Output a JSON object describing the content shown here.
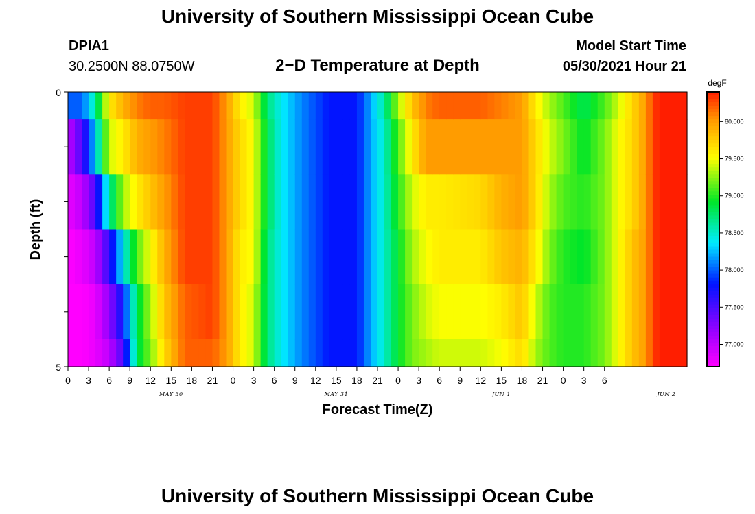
{
  "header": {
    "title": "University of Southern Mississippi Ocean Cube",
    "station_id": "DPIA1",
    "station_coords": "30.2500N  88.0750W",
    "chart_title": "2−D Temperature at Depth",
    "model_start_label": "Model Start Time",
    "model_start_value": "05/30/2021 Hour 21"
  },
  "footer": {
    "title": "University of Southern Mississippi Ocean Cube"
  },
  "chart_data": {
    "type": "heatmap",
    "title": "2−D Temperature at Depth",
    "xlabel": "Forecast Time(Z)",
    "ylabel": "Depth (ft)",
    "y_ticks": [
      "0",
      "5"
    ],
    "ylim": [
      0,
      5
    ],
    "x_tick_labels": [
      "0",
      "3",
      "6",
      "9",
      "12",
      "15",
      "18",
      "21",
      "0",
      "3",
      "6",
      "9",
      "12",
      "15",
      "18",
      "21",
      "0",
      "3",
      "6",
      "9",
      "12",
      "15",
      "18",
      "21",
      "0",
      "3",
      "6"
    ],
    "date_labels": [
      "MAY 30",
      "MAY 31",
      "JUN 1",
      "JUN 2"
    ],
    "colorbar": {
      "unit": "degF",
      "range": [
        76.7,
        80.4
      ],
      "tick_labels": [
        "77.000",
        "77.500",
        "78.000",
        "78.500",
        "79.000",
        "79.500",
        "80.000"
      ],
      "tick_values": [
        77.0,
        77.5,
        78.0,
        78.5,
        79.0,
        79.5,
        80.0
      ]
    },
    "time_step_hours": 1,
    "depth_levels_ft": [
      "0-0.5",
      "0.5-1.5",
      "1.5-2.5",
      "2.5-3.5",
      "3.5-4.5",
      "4.5-5"
    ],
    "temperature_keyframes_degF": [
      {
        "hour": 0,
        "levels": [
          78.0,
          77.0,
          76.8,
          76.7,
          76.7,
          76.7
        ]
      },
      {
        "hour": 2,
        "levels": [
          78.0,
          77.5,
          77.0,
          76.8,
          76.7,
          76.7
        ]
      },
      {
        "hour": 4,
        "levels": [
          78.6,
          78.3,
          77.5,
          77.0,
          76.8,
          76.8
        ]
      },
      {
        "hour": 6,
        "levels": [
          79.6,
          79.4,
          78.6,
          77.6,
          77.2,
          77.0
        ]
      },
      {
        "hour": 8,
        "levels": [
          79.9,
          79.6,
          79.3,
          78.4,
          77.8,
          77.5
        ]
      },
      {
        "hour": 10,
        "levels": [
          80.1,
          79.9,
          79.6,
          79.1,
          78.8,
          78.8
        ]
      },
      {
        "hour": 12,
        "levels": [
          80.2,
          80.0,
          79.8,
          79.5,
          79.3,
          79.2
        ]
      },
      {
        "hour": 14,
        "levels": [
          80.2,
          80.1,
          80.0,
          79.9,
          79.8,
          79.7
        ]
      },
      {
        "hour": 17,
        "levels": [
          80.3,
          80.3,
          80.3,
          80.3,
          80.2,
          80.2
        ]
      },
      {
        "hour": 21,
        "levels": [
          80.3,
          80.3,
          80.3,
          80.3,
          80.3,
          80.2
        ]
      },
      {
        "hour": 23,
        "levels": [
          80.0,
          80.0,
          80.0,
          80.0,
          80.0,
          80.0
        ]
      },
      {
        "hour": 25,
        "levels": [
          79.6,
          79.7,
          79.7,
          79.6,
          79.6,
          79.6
        ]
      },
      {
        "hour": 27,
        "levels": [
          79.4,
          79.5,
          79.5,
          79.5,
          79.4,
          79.4
        ]
      },
      {
        "hour": 29,
        "levels": [
          78.7,
          78.8,
          78.8,
          78.7,
          78.7,
          78.7
        ]
      },
      {
        "hour": 31,
        "levels": [
          78.4,
          78.4,
          78.4,
          78.4,
          78.4,
          78.4
        ]
      },
      {
        "hour": 34,
        "levels": [
          78.1,
          78.1,
          78.1,
          78.1,
          78.1,
          78.1
        ]
      },
      {
        "hour": 38,
        "levels": [
          77.8,
          77.8,
          77.8,
          77.8,
          77.8,
          77.8
        ]
      },
      {
        "hour": 42,
        "levels": [
          77.8,
          77.8,
          77.8,
          77.8,
          77.8,
          77.8
        ]
      },
      {
        "hour": 44,
        "levels": [
          78.2,
          78.2,
          78.2,
          78.2,
          78.2,
          78.2
        ]
      },
      {
        "hour": 46,
        "levels": [
          78.6,
          78.5,
          78.5,
          78.5,
          78.5,
          78.5
        ]
      },
      {
        "hour": 48,
        "levels": [
          79.3,
          79.1,
          79.0,
          78.9,
          78.9,
          78.9
        ]
      },
      {
        "hour": 50,
        "levels": [
          79.8,
          79.6,
          79.4,
          79.3,
          79.2,
          79.2
        ]
      },
      {
        "hour": 52,
        "levels": [
          80.1,
          80.0,
          79.6,
          79.5,
          79.4,
          79.3
        ]
      },
      {
        "hour": 54,
        "levels": [
          80.2,
          80.0,
          79.6,
          79.6,
          79.5,
          79.4
        ]
      },
      {
        "hour": 60,
        "levels": [
          80.2,
          80.0,
          79.7,
          79.6,
          79.5,
          79.4
        ]
      },
      {
        "hour": 63,
        "levels": [
          80.1,
          80.0,
          79.9,
          79.8,
          79.6,
          79.5
        ]
      },
      {
        "hour": 66,
        "levels": [
          80.0,
          80.0,
          80.0,
          79.9,
          79.8,
          79.7
        ]
      },
      {
        "hour": 68,
        "levels": [
          79.6,
          79.7,
          79.7,
          79.6,
          79.4,
          79.3
        ]
      },
      {
        "hour": 70,
        "levels": [
          79.3,
          79.4,
          79.3,
          79.2,
          79.1,
          79.1
        ]
      },
      {
        "hour": 72,
        "levels": [
          79.1,
          79.2,
          79.1,
          79.0,
          79.0,
          79.0
        ]
      },
      {
        "hour": 75,
        "levels": [
          78.8,
          78.9,
          79.0,
          78.9,
          79.0,
          79.0
        ]
      },
      {
        "hour": 78,
        "levels": [
          79.1,
          79.2,
          79.2,
          79.2,
          79.2,
          79.2
        ]
      },
      {
        "hour": 80,
        "levels": [
          79.4,
          79.5,
          79.5,
          79.5,
          79.5,
          79.5
        ]
      },
      {
        "hour": 82,
        "levels": [
          79.7,
          79.7,
          79.7,
          79.8,
          79.8,
          79.8
        ]
      },
      {
        "hour": 84,
        "levels": [
          80.0,
          80.0,
          80.0,
          80.0,
          80.0,
          80.0
        ]
      },
      {
        "hour": 85,
        "levels": [
          80.3,
          80.3,
          80.3,
          80.3,
          80.3,
          80.3
        ]
      },
      {
        "hour": 86,
        "levels": [
          80.4,
          80.4,
          80.4,
          80.4,
          80.4,
          80.4
        ]
      }
    ]
  }
}
